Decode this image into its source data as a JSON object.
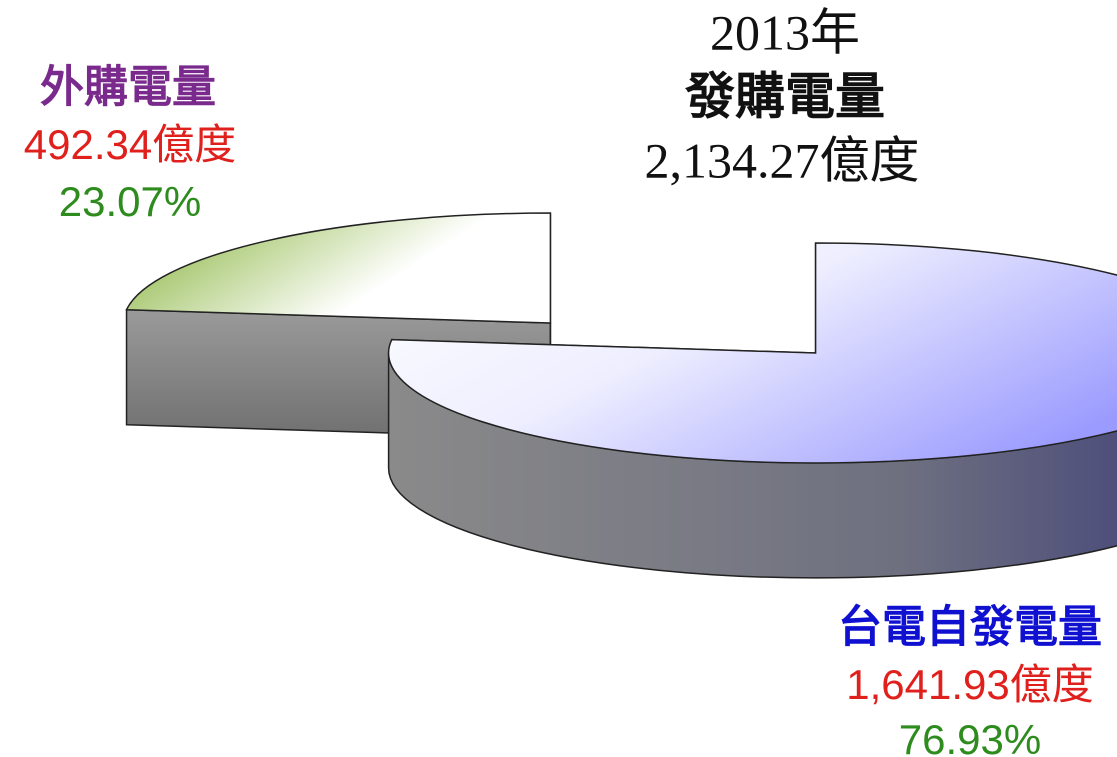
{
  "chart_data": {
    "type": "pie3d",
    "title": [
      "2013年",
      "發購電量",
      "2,134.27億度"
    ],
    "categories": [
      "外購電量",
      "台電自發電量"
    ],
    "values": [
      23.07,
      76.93
    ],
    "value_labels": [
      "23.07%",
      "76.93%"
    ],
    "amounts": [
      492.34,
      1641.93
    ],
    "amount_labels": [
      "492.34億度",
      "1,641.93億度"
    ],
    "colors": [
      "#7fae2e",
      "#9a9aff"
    ],
    "category_label_colors": [
      "#7a2a8c",
      "#1010d0"
    ]
  }
}
